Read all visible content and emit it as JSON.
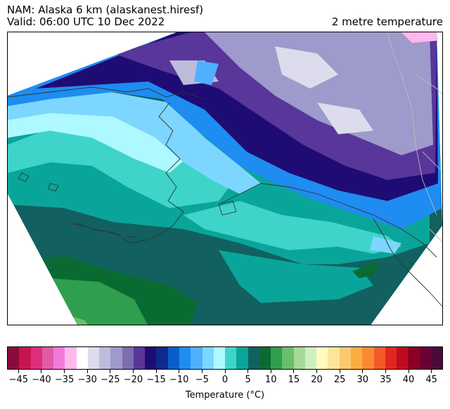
{
  "header": {
    "line1": "NAM: Alaska 6 km (alaskanest.hiresf)",
    "line2": "Valid: 06:00 UTC 10 Dec 2022",
    "field": "2 metre temperature"
  },
  "colorbar": {
    "label": "Temperature (°C)",
    "min": -47.5,
    "max": 47.5,
    "step": 2.5,
    "ticks": [
      "-45",
      "-40",
      "-35",
      "-30",
      "-25",
      "-20",
      "-15",
      "-10",
      "-5",
      "0",
      "5",
      "10",
      "15",
      "20",
      "25",
      "30",
      "35",
      "40",
      "45"
    ],
    "colors": [
      "#8b0a3c",
      "#c8144f",
      "#e02f7a",
      "#e15aa8",
      "#f27ad8",
      "#ffb8ee",
      "#ffffff",
      "#dcdcec",
      "#bcbcdb",
      "#9e9acb",
      "#7b6fb2",
      "#58369a",
      "#1f0b74",
      "#0e2a8f",
      "#0b5ec9",
      "#1e8cf0",
      "#4fb0ff",
      "#7dd6ff",
      "#aef8ff",
      "#3fd4c9",
      "#0aa59a",
      "#126060",
      "#096b32",
      "#2f9e4e",
      "#6abf6a",
      "#a6d89a",
      "#ceefc0",
      "#fffbbe",
      "#fde59a",
      "#fcc870",
      "#fbae40",
      "#fa8a32",
      "#f35a2a",
      "#e2261f",
      "#c00a20",
      "#8e0021",
      "#6a0034",
      "#4c0a3a"
    ]
  },
  "map": {
    "region": "Alaska",
    "colors": {
      "deep_teal": "#126060",
      "teal": "#0aa59a",
      "turquoise": "#3fd4c9",
      "dark_green": "#096b32",
      "green": "#2f9e4e",
      "light_green": "#6abf6a",
      "cyan": "#aef8ff",
      "sky": "#7dd6ff",
      "blue": "#1e8cf0",
      "indigo": "#1f0b74",
      "purple": "#58369a",
      "lavender": "#9e9acb",
      "lilac": "#dcdcec",
      "pink": "#ffb8ee"
    }
  }
}
